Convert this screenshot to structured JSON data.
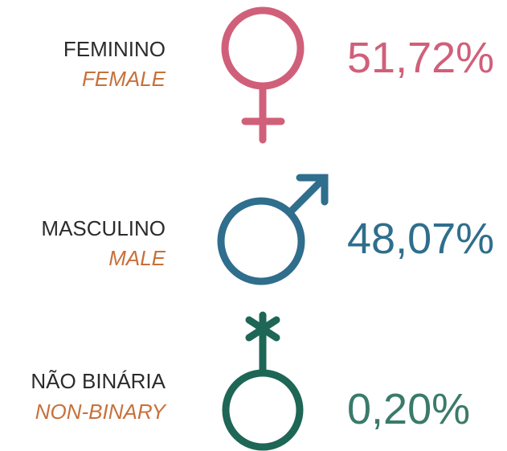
{
  "items": [
    {
      "label": "FEMININO",
      "label_en": "FEMALE",
      "percent": "51,72%"
    },
    {
      "label": "MASCULINO",
      "label_en": "MALE",
      "percent": "48,07%"
    },
    {
      "label": "NÃO BINÁRIA",
      "label_en": "NON-BINARY",
      "percent": "0,20%"
    }
  ]
}
